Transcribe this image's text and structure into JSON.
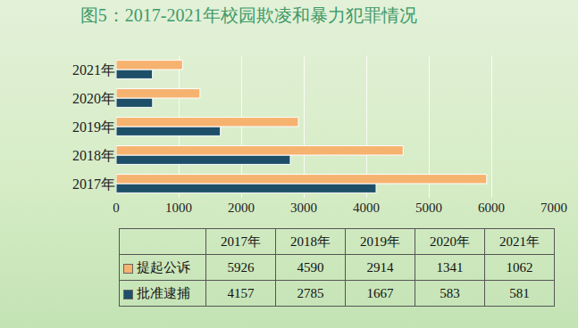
{
  "chart_data": {
    "type": "bar",
    "title": "图5：2017-2021年校园欺凌和暴力犯罪情况",
    "orientation": "horizontal",
    "categories": [
      "2017年",
      "2018年",
      "2019年",
      "2020年",
      "2021年"
    ],
    "series": [
      {
        "name": "提起公诉",
        "color": "#f6b26f",
        "values": [
          5926,
          4590,
          2914,
          1341,
          1062
        ]
      },
      {
        "name": "批准逮捕",
        "color": "#1d4f69",
        "values": [
          4157,
          2785,
          1667,
          583,
          581
        ]
      }
    ],
    "xlim": [
      0,
      7000
    ],
    "xticks": [
      0,
      1000,
      2000,
      3000,
      4000,
      5000,
      6000,
      7000
    ],
    "grid": true
  }
}
